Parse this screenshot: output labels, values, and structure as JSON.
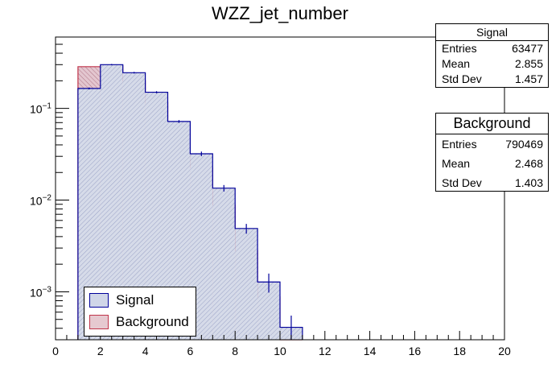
{
  "chart_data": {
    "type": "bar",
    "title": "WZZ_jet_number",
    "xlabel": "",
    "ylabel": "",
    "xlim": [
      0,
      20
    ],
    "ylim": [
      0.0003,
      0.6
    ],
    "y_scale": "log",
    "bin_width": 1,
    "x_ticks": [
      0,
      2,
      4,
      6,
      8,
      10,
      12,
      14,
      16,
      18,
      20
    ],
    "y_tick_labels": [
      {
        "base": "10",
        "exp": "−1",
        "value": 0.1
      },
      {
        "base": "10",
        "exp": "−2",
        "value": 0.01
      },
      {
        "base": "10",
        "exp": "−3",
        "value": 0.001
      }
    ],
    "grid": false,
    "legend_position": "bottom-left",
    "bin_left_edges": [
      1,
      2,
      3,
      4,
      5,
      6,
      7,
      8,
      9,
      10
    ],
    "series": [
      {
        "name": "Signal",
        "values": [
          0.165,
          0.3,
          0.245,
          0.15,
          0.072,
          0.032,
          0.0135,
          0.0049,
          0.00128,
          0.00041
        ],
        "errors": [
          0.004,
          0.005,
          0.005,
          0.004,
          0.0025,
          0.0018,
          0.0011,
          0.0006,
          0.0003,
          0.00014
        ],
        "line_color": "#00009a",
        "fill_color": "#d0d6e8"
      },
      {
        "name": "Background",
        "values": [
          0.285,
          0.29,
          0.2,
          0.115,
          0.053,
          0.0225,
          0.0088,
          0.0028,
          0.00088,
          0.0003
        ],
        "errors": [
          0.001,
          0.001,
          0.001,
          0.0008,
          0.0005,
          0.0003,
          0.00018,
          9e-05,
          4e-05,
          2e-05
        ],
        "line_color": "#c0344a",
        "fill_color": "#e6c9d0"
      }
    ],
    "stats": [
      {
        "title": "Signal",
        "rows": [
          {
            "label": "Entries",
            "value": "63477"
          },
          {
            "label": "Mean",
            "value": "2.855"
          },
          {
            "label": "Std Dev",
            "value": "1.457"
          }
        ]
      },
      {
        "title": "Background",
        "rows": [
          {
            "label": "Entries",
            "value": "790469"
          },
          {
            "label": "Mean",
            "value": "2.468"
          },
          {
            "label": "Std Dev",
            "value": "1.403"
          }
        ]
      }
    ],
    "legend": [
      {
        "label": "Signal",
        "line_color": "#00009a",
        "fill_color": "#d0d6e8"
      },
      {
        "label": "Background",
        "line_color": "#c0344a",
        "fill_color": "#e6c9d0"
      }
    ]
  }
}
